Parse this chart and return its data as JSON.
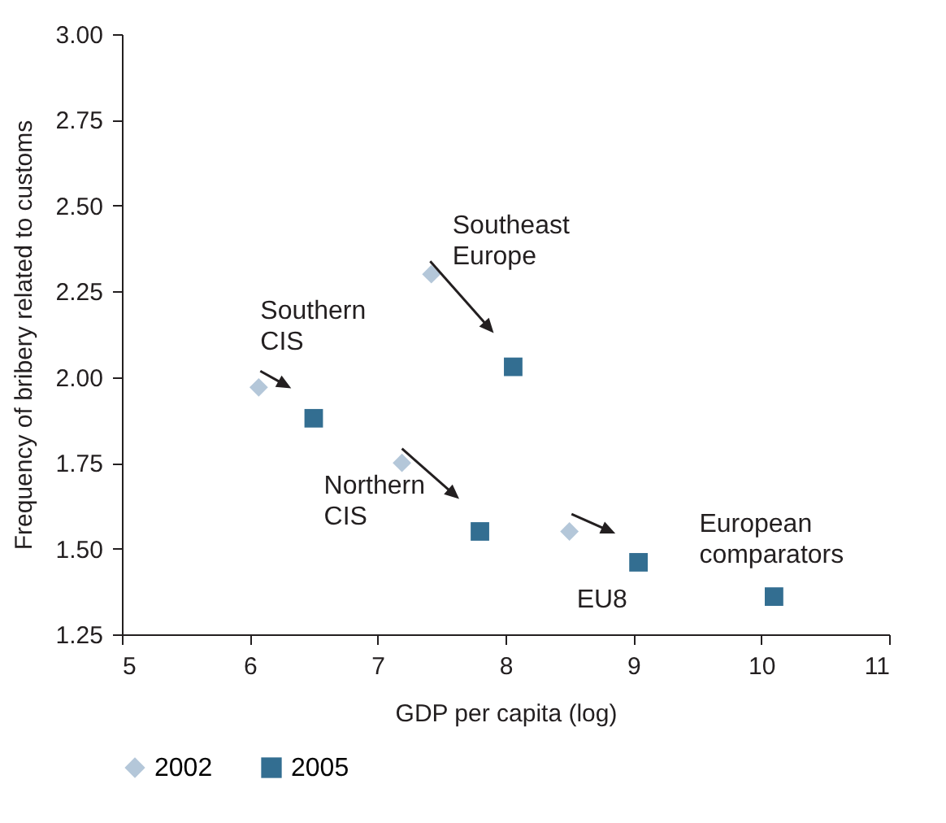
{
  "chart_data": {
    "type": "scatter",
    "xlabel": "GDP per capita (log)",
    "ylabel": "Frequency of bribery related to customs",
    "xlim": [
      5,
      11
    ],
    "xticks": [
      5,
      6,
      7,
      8,
      9,
      10,
      11
    ],
    "ylim": [
      1.25,
      3
    ],
    "yticks": [
      {
        "value": 1.25,
        "label": "1.25"
      },
      {
        "value": 1.5,
        "label": "1.50"
      },
      {
        "value": 1.75,
        "label": "1.75"
      },
      {
        "value": 2,
        "label": "2.00"
      },
      {
        "value": 2.25,
        "label": "2.25"
      },
      {
        "value": 2.5,
        "label": "2.50"
      },
      {
        "value": 2.75,
        "label": "2.75"
      },
      {
        "value": 3,
        "label": "3.00"
      }
    ],
    "series": [
      {
        "name": "2002",
        "color": "#b4c7d9",
        "marker": "diamond",
        "x": [
          6.07,
          7.42,
          7.19,
          8.5,
          null
        ],
        "values": [
          1.97,
          2.3,
          1.75,
          1.55,
          null
        ]
      },
      {
        "name": "2005",
        "color": "#336e91",
        "marker": "square",
        "x": [
          6.5,
          8.06,
          7.8,
          9.04,
          10.1
        ],
        "values": [
          1.88,
          2.03,
          1.55,
          1.46,
          1.36
        ]
      }
    ],
    "annotations": [
      {
        "text": "Southern CIS",
        "x": 6.07,
        "y": 1.97
      },
      {
        "text": "Southeast Europe",
        "x": 7.42,
        "y": 2.3
      },
      {
        "text": "Northern CIS",
        "x": 7.19,
        "y": 1.75
      },
      {
        "text": "EU8",
        "x": 9.04,
        "y": 1.46
      },
      {
        "text": "European comparators",
        "x": 10.1,
        "y": 1.36
      }
    ],
    "grid": false,
    "legend": "bottom"
  }
}
